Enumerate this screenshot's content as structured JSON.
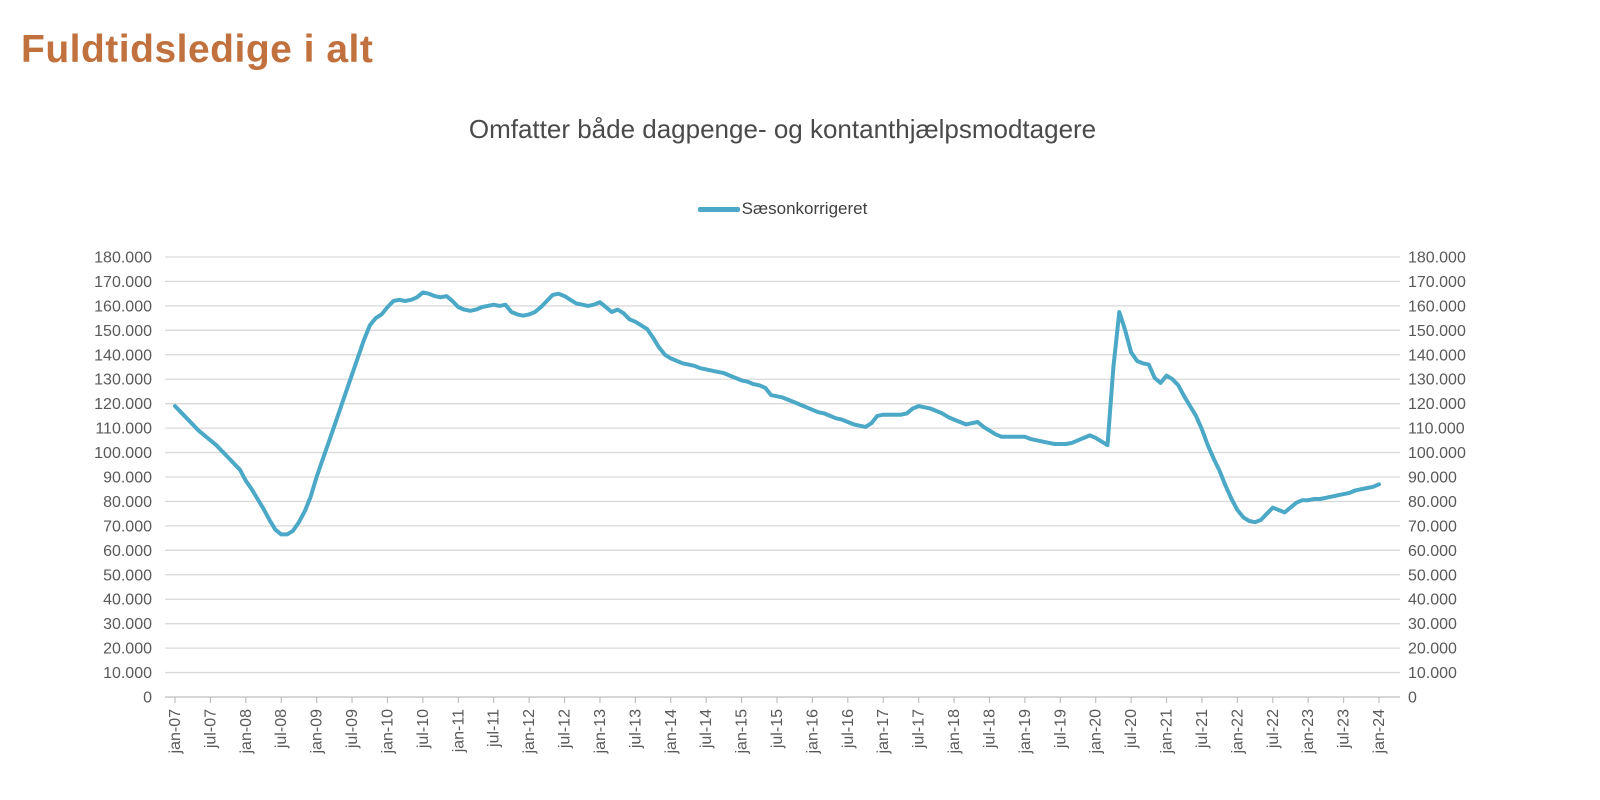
{
  "page": {
    "title": "Fuldtidsledige i alt"
  },
  "colors": {
    "title": "#C0713D",
    "line": "#4BA8C6",
    "chart_title_text": "#4A4A4A",
    "legend_text": "#404040",
    "axis_text": "#595959",
    "gridline": "#D9D9D9",
    "axis_line": "#BFBFBF"
  },
  "chart_data": {
    "type": "line",
    "title": "Omfatter både dagpenge- og kontanthjælpsmodtagere",
    "legend": {
      "label": "Sæsonkorrigeret",
      "position": "top-center"
    },
    "grid": "horizontal",
    "dual_y_axis": true,
    "ylim": [
      0,
      180000
    ],
    "y_tick_step": 10000,
    "y_tick_labels": [
      "0",
      "10.000",
      "20.000",
      "30.000",
      "40.000",
      "50.000",
      "60.000",
      "70.000",
      "80.000",
      "90.000",
      "100.000",
      "110.000",
      "120.000",
      "130.000",
      "140.000",
      "150.000",
      "160.000",
      "170.000",
      "180.000"
    ],
    "x_start": "jan-07",
    "x_end": "jan-24",
    "x_tick_interval_months": 6,
    "x_tick_labels": [
      "jan-07",
      "jul-07",
      "jan-08",
      "jul-08",
      "jan-09",
      "jul-09",
      "jan-10",
      "jul-10",
      "jan-11",
      "jul-11",
      "jan-12",
      "jul-12",
      "jan-13",
      "jul-13",
      "jan-14",
      "jul-14",
      "jan-15",
      "jul-15",
      "jan-16",
      "jul-16",
      "jan-17",
      "jul-17",
      "jan-18",
      "jul-18",
      "jan-19",
      "jul-19",
      "jan-20",
      "jul-20",
      "jan-21",
      "jul-21",
      "jan-22",
      "jul-22",
      "jan-23",
      "jul-23",
      "jan-24"
    ],
    "series": [
      {
        "name": "Sæsonkorrigeret",
        "frequency": "monthly",
        "monthly_values": [
          119000,
          116500,
          114000,
          111500,
          109000,
          107000,
          105000,
          103000,
          100500,
          98000,
          95500,
          93000,
          88500,
          85000,
          81000,
          77000,
          72500,
          68500,
          66500,
          66500,
          68000,
          71500,
          76000,
          82000,
          90000,
          97000,
          104000,
          111000,
          118000,
          125000,
          132000,
          139000,
          146000,
          152000,
          155000,
          156500,
          159500,
          162000,
          162500,
          162000,
          162500,
          163500,
          165500,
          165000,
          164000,
          163500,
          164000,
          162000,
          159500,
          158500,
          158000,
          158500,
          159500,
          160000,
          160500,
          160000,
          160500,
          157500,
          156500,
          156000,
          156500,
          157500,
          159500,
          162000,
          164500,
          165000,
          164000,
          162500,
          161000,
          160500,
          160000,
          160500,
          161500,
          159500,
          157500,
          158500,
          157000,
          154500,
          153500,
          152000,
          150500,
          147000,
          143000,
          140000,
          138500,
          137500,
          136500,
          136000,
          135500,
          134500,
          134000,
          133500,
          133000,
          132500,
          131500,
          130500,
          129500,
          129000,
          128000,
          127500,
          126500,
          123500,
          123000,
          122500,
          121500,
          120500,
          119500,
          118500,
          117500,
          116500,
          116000,
          115000,
          114000,
          113500,
          112500,
          111500,
          111000,
          110500,
          112000,
          115000,
          115500,
          115500,
          115500,
          115500,
          116000,
          118000,
          119000,
          118500,
          118000,
          117000,
          116000,
          114500,
          113500,
          112500,
          111500,
          112000,
          112500,
          110500,
          109000,
          107500,
          106500,
          106500,
          106500,
          106500,
          106500,
          105500,
          105000,
          104500,
          104000,
          103500,
          103500,
          103500,
          104000,
          105000,
          106000,
          107000,
          106000,
          104500,
          103000,
          135000,
          157500,
          150000,
          141000,
          137500,
          136500,
          136000,
          130500,
          128500,
          131500,
          130000,
          127500,
          123000,
          119000,
          115000,
          109500,
          103000,
          97500,
          92500,
          86500,
          81000,
          76500,
          73500,
          72000,
          71500,
          72500,
          75000,
          77500,
          76500,
          75500,
          77500,
          79500,
          80500,
          80500,
          81000,
          81000,
          81500,
          82000,
          82500,
          83000,
          83500,
          84500,
          85000,
          85500,
          86000,
          87000
        ]
      }
    ]
  }
}
